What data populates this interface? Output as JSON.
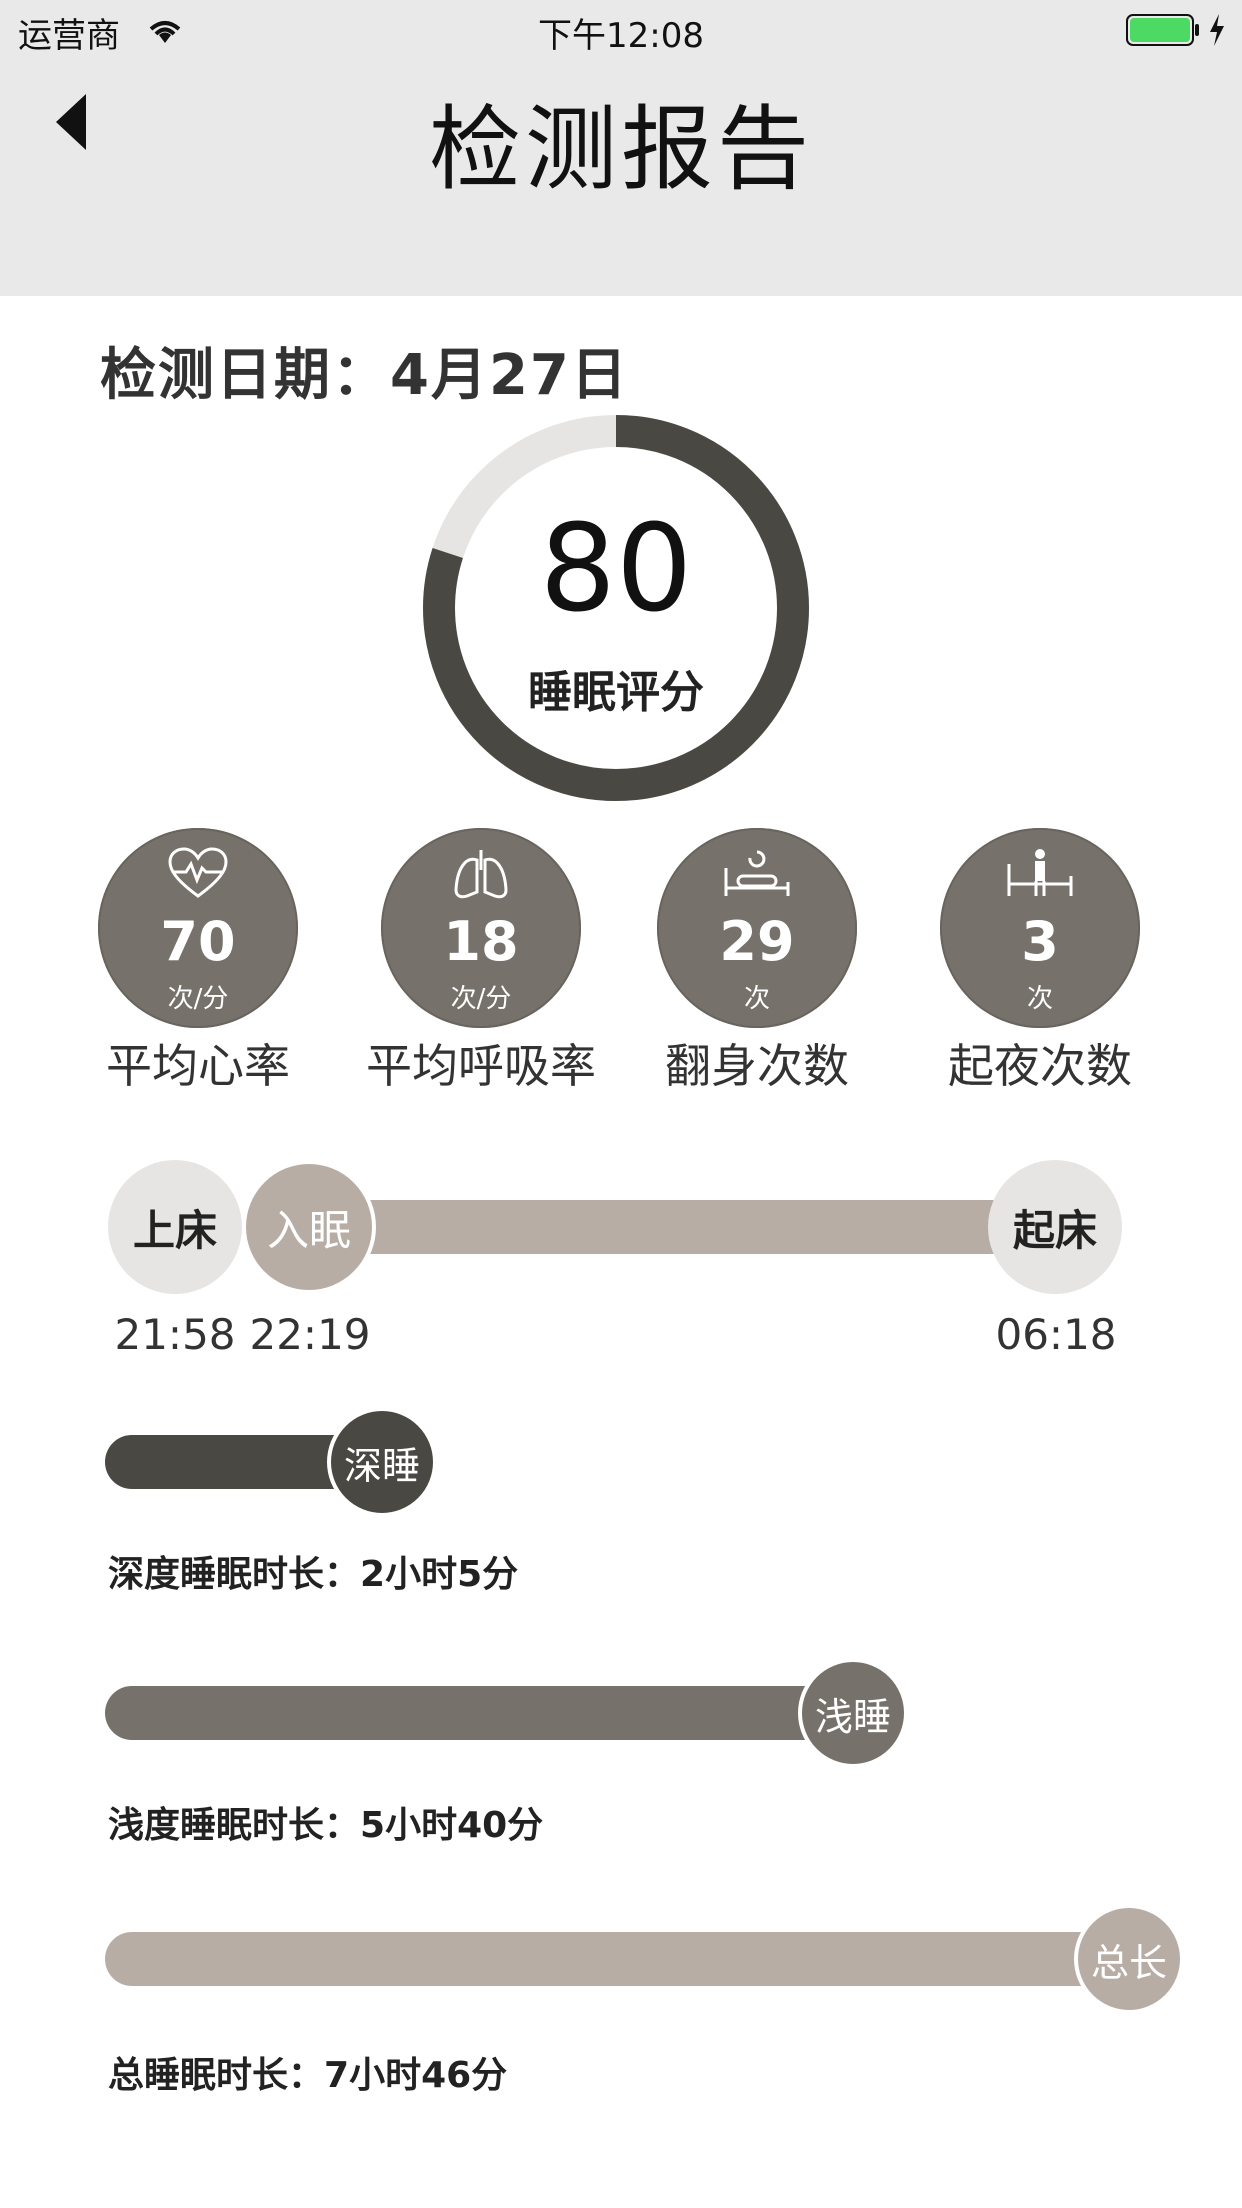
{
  "status_bar": {
    "carrier": "运营商",
    "time": "下午12:08"
  },
  "nav": {
    "title": "检测报告"
  },
  "report": {
    "date_label": "检测日期：",
    "date_value": "4月27日",
    "score": {
      "value": "80",
      "label": "睡眠评分",
      "fraction": 0.8
    }
  },
  "stats": [
    {
      "icon": "heart-rate-icon",
      "value": "70",
      "unit": "次/分",
      "label": "平均心率"
    },
    {
      "icon": "lungs-icon",
      "value": "18",
      "unit": "次/分",
      "label": "平均呼吸率"
    },
    {
      "icon": "turn-over-bed-icon",
      "value": "29",
      "unit": "次",
      "label": "翻身次数"
    },
    {
      "icon": "get-up-bed-icon",
      "value": "3",
      "unit": "次",
      "label": "起夜次数"
    }
  ],
  "timeline": {
    "bed_label": "上床",
    "bed_time": "21:58",
    "sleep_label": "入眠",
    "sleep_time": "22:19",
    "wake_label": "起床",
    "wake_time": "06:18"
  },
  "durations": {
    "deep": {
      "knob": "深睡",
      "label": "深度睡眠时长：",
      "value": "2小时5分"
    },
    "light": {
      "knob": "浅睡",
      "label": "浅度睡眠时长：",
      "value": "5小时40分"
    },
    "total": {
      "knob": "总长",
      "label": "总睡眠时长：",
      "value": "7小时46分"
    }
  },
  "colors": {
    "dark": "#4a4842",
    "medium": "#77716b",
    "light": "#b8ada5",
    "track": "#e6e5e4",
    "header": "#e9e9e9"
  }
}
